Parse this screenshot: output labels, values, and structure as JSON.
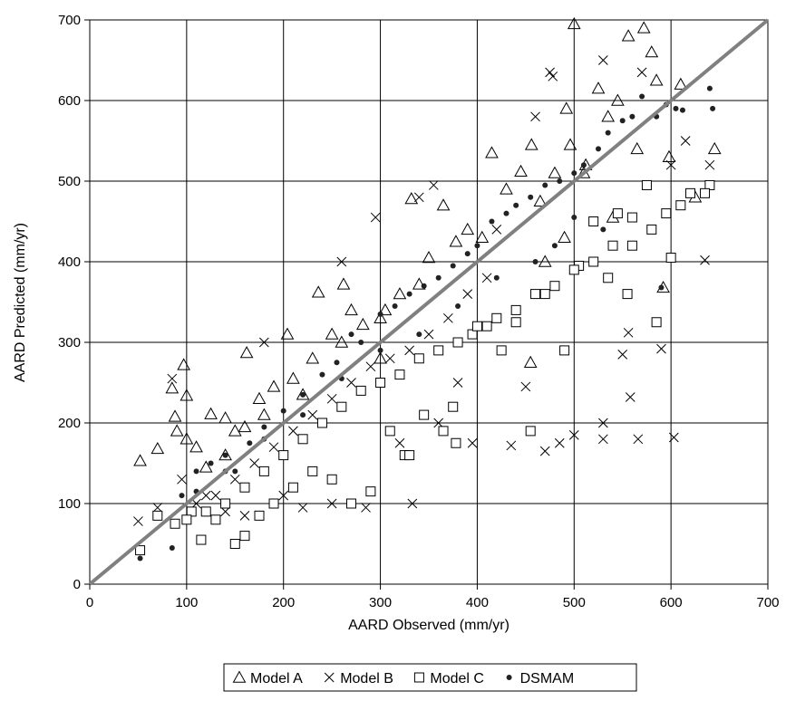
{
  "chart_data": {
    "type": "scatter",
    "xlabel": "AARD Observed (mm/yr)",
    "ylabel": "AARD Predicted (mm/yr)",
    "xlim": [
      0,
      700
    ],
    "ylim": [
      0,
      700
    ],
    "x_ticks": [
      "0",
      "100",
      "200",
      "300",
      "400",
      "500",
      "600",
      "700"
    ],
    "y_ticks": [
      "0",
      "100",
      "200",
      "300",
      "400",
      "500",
      "600",
      "700"
    ],
    "grid": true,
    "legend_position": "bottom",
    "reference_line": {
      "from": [
        0,
        0
      ],
      "to": [
        700,
        700
      ],
      "color": "#808080"
    },
    "series": [
      {
        "name": "Model A",
        "marker": "triangle",
        "points": [
          [
            52,
            153
          ],
          [
            70,
            168
          ],
          [
            85,
            243
          ],
          [
            88,
            208
          ],
          [
            97,
            272
          ],
          [
            100,
            234
          ],
          [
            110,
            170
          ],
          [
            125,
            211
          ],
          [
            140,
            206
          ],
          [
            150,
            190
          ],
          [
            162,
            287
          ],
          [
            175,
            230
          ],
          [
            190,
            245
          ],
          [
            204,
            310
          ],
          [
            220,
            235
          ],
          [
            236,
            362
          ],
          [
            250,
            310
          ],
          [
            262,
            372
          ],
          [
            270,
            340
          ],
          [
            282,
            322
          ],
          [
            300,
            330
          ],
          [
            305,
            340
          ],
          [
            320,
            360
          ],
          [
            332,
            478
          ],
          [
            340,
            372
          ],
          [
            350,
            405
          ],
          [
            365,
            470
          ],
          [
            378,
            425
          ],
          [
            390,
            440
          ],
          [
            405,
            430
          ],
          [
            415,
            535
          ],
          [
            430,
            490
          ],
          [
            445,
            512
          ],
          [
            456,
            545
          ],
          [
            465,
            475
          ],
          [
            480,
            510
          ],
          [
            492,
            590
          ],
          [
            496,
            545
          ],
          [
            500,
            695
          ],
          [
            512,
            520
          ],
          [
            525,
            615
          ],
          [
            535,
            580
          ],
          [
            545,
            600
          ],
          [
            556,
            680
          ],
          [
            565,
            540
          ],
          [
            572,
            690
          ],
          [
            580,
            660
          ],
          [
            585,
            625
          ],
          [
            598,
            530
          ],
          [
            610,
            620
          ],
          [
            625,
            480
          ],
          [
            645,
            540
          ],
          [
            592,
            368
          ],
          [
            540,
            455
          ],
          [
            510,
            510
          ],
          [
            490,
            430
          ],
          [
            470,
            400
          ],
          [
            455,
            275
          ],
          [
            300,
            280
          ],
          [
            260,
            300
          ],
          [
            230,
            280
          ],
          [
            210,
            255
          ],
          [
            180,
            210
          ],
          [
            160,
            195
          ],
          [
            140,
            160
          ],
          [
            120,
            145
          ],
          [
            100,
            180
          ],
          [
            90,
            190
          ]
        ]
      },
      {
        "name": "Model B",
        "marker": "x",
        "points": [
          [
            50,
            78
          ],
          [
            70,
            95
          ],
          [
            85,
            255
          ],
          [
            95,
            130
          ],
          [
            120,
            110
          ],
          [
            140,
            90
          ],
          [
            160,
            85
          ],
          [
            180,
            300
          ],
          [
            200,
            110
          ],
          [
            220,
            95
          ],
          [
            250,
            100
          ],
          [
            260,
            400
          ],
          [
            285,
            95
          ],
          [
            295,
            455
          ],
          [
            320,
            175
          ],
          [
            333,
            100
          ],
          [
            340,
            480
          ],
          [
            355,
            495
          ],
          [
            360,
            200
          ],
          [
            380,
            250
          ],
          [
            395,
            175
          ],
          [
            420,
            440
          ],
          [
            435,
            172
          ],
          [
            450,
            245
          ],
          [
            470,
            165
          ],
          [
            475,
            635
          ],
          [
            478,
            630
          ],
          [
            485,
            175
          ],
          [
            500,
            185
          ],
          [
            530,
            180
          ],
          [
            530,
            200
          ],
          [
            530,
            650
          ],
          [
            550,
            285
          ],
          [
            556,
            312
          ],
          [
            558,
            232
          ],
          [
            566,
            180
          ],
          [
            570,
            635
          ],
          [
            580,
            440
          ],
          [
            590,
            292
          ],
          [
            600,
            520
          ],
          [
            603,
            182
          ],
          [
            610,
            470
          ],
          [
            615,
            550
          ],
          [
            635,
            402
          ],
          [
            640,
            520
          ],
          [
            460,
            580
          ],
          [
            410,
            380
          ],
          [
            390,
            360
          ],
          [
            370,
            330
          ],
          [
            350,
            310
          ],
          [
            330,
            290
          ],
          [
            310,
            280
          ],
          [
            290,
            270
          ],
          [
            270,
            250
          ],
          [
            250,
            230
          ],
          [
            230,
            210
          ],
          [
            210,
            190
          ],
          [
            190,
            170
          ],
          [
            170,
            150
          ],
          [
            150,
            130
          ],
          [
            130,
            110
          ],
          [
            110,
            100
          ]
        ]
      },
      {
        "name": "Model C",
        "marker": "square",
        "points": [
          [
            52,
            42
          ],
          [
            70,
            85
          ],
          [
            88,
            75
          ],
          [
            105,
            90
          ],
          [
            115,
            55
          ],
          [
            130,
            80
          ],
          [
            150,
            50
          ],
          [
            160,
            60
          ],
          [
            175,
            85
          ],
          [
            190,
            100
          ],
          [
            210,
            120
          ],
          [
            230,
            140
          ],
          [
            250,
            130
          ],
          [
            270,
            100
          ],
          [
            290,
            115
          ],
          [
            310,
            190
          ],
          [
            325,
            160
          ],
          [
            330,
            160
          ],
          [
            345,
            210
          ],
          [
            365,
            190
          ],
          [
            375,
            220
          ],
          [
            378,
            175
          ],
          [
            395,
            310
          ],
          [
            410,
            320
          ],
          [
            425,
            290
          ],
          [
            440,
            325
          ],
          [
            455,
            190
          ],
          [
            470,
            360
          ],
          [
            490,
            290
          ],
          [
            505,
            395
          ],
          [
            520,
            450
          ],
          [
            535,
            380
          ],
          [
            545,
            460
          ],
          [
            555,
            360
          ],
          [
            560,
            455
          ],
          [
            575,
            495
          ],
          [
            585,
            325
          ],
          [
            595,
            460
          ],
          [
            600,
            405
          ],
          [
            610,
            470
          ],
          [
            620,
            485
          ],
          [
            640,
            495
          ],
          [
            635,
            485
          ],
          [
            580,
            440
          ],
          [
            560,
            420
          ],
          [
            540,
            420
          ],
          [
            520,
            400
          ],
          [
            500,
            390
          ],
          [
            480,
            370
          ],
          [
            460,
            360
          ],
          [
            440,
            340
          ],
          [
            420,
            330
          ],
          [
            400,
            320
          ],
          [
            380,
            300
          ],
          [
            360,
            290
          ],
          [
            340,
            280
          ],
          [
            320,
            260
          ],
          [
            300,
            250
          ],
          [
            280,
            240
          ],
          [
            260,
            220
          ],
          [
            240,
            200
          ],
          [
            220,
            180
          ],
          [
            200,
            160
          ],
          [
            180,
            140
          ],
          [
            160,
            120
          ],
          [
            140,
            100
          ],
          [
            120,
            90
          ],
          [
            100,
            80
          ]
        ]
      },
      {
        "name": "DSMAM",
        "marker": "dot",
        "points": [
          [
            52,
            32
          ],
          [
            85,
            45
          ],
          [
            95,
            110
          ],
          [
            110,
            140
          ],
          [
            125,
            150
          ],
          [
            140,
            160
          ],
          [
            150,
            140
          ],
          [
            165,
            175
          ],
          [
            180,
            195
          ],
          [
            200,
            215
          ],
          [
            220,
            235
          ],
          [
            240,
            260
          ],
          [
            255,
            275
          ],
          [
            270,
            310
          ],
          [
            280,
            300
          ],
          [
            300,
            335
          ],
          [
            315,
            345
          ],
          [
            330,
            360
          ],
          [
            345,
            370
          ],
          [
            360,
            380
          ],
          [
            375,
            395
          ],
          [
            390,
            410
          ],
          [
            400,
            420
          ],
          [
            415,
            450
          ],
          [
            430,
            460
          ],
          [
            440,
            470
          ],
          [
            455,
            480
          ],
          [
            470,
            495
          ],
          [
            485,
            500
          ],
          [
            500,
            510
          ],
          [
            510,
            520
          ],
          [
            525,
            540
          ],
          [
            535,
            560
          ],
          [
            550,
            575
          ],
          [
            560,
            580
          ],
          [
            570,
            605
          ],
          [
            585,
            580
          ],
          [
            595,
            595
          ],
          [
            605,
            590
          ],
          [
            612,
            588
          ],
          [
            640,
            615
          ],
          [
            643,
            590
          ],
          [
            590,
            368
          ],
          [
            530,
            440
          ],
          [
            500,
            455
          ],
          [
            480,
            420
          ],
          [
            460,
            400
          ],
          [
            420,
            380
          ],
          [
            380,
            345
          ],
          [
            340,
            310
          ],
          [
            300,
            290
          ],
          [
            260,
            255
          ],
          [
            220,
            210
          ],
          [
            180,
            180
          ],
          [
            140,
            140
          ],
          [
            110,
            115
          ]
        ]
      }
    ]
  }
}
